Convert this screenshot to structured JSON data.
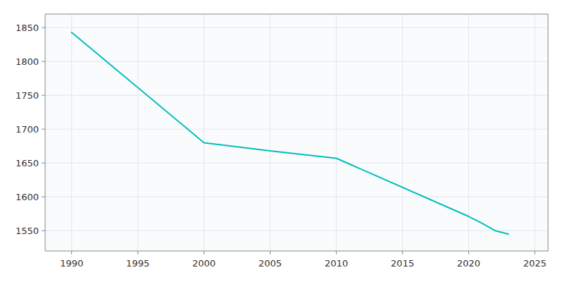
{
  "chart_data": {
    "type": "line",
    "x": [
      1990,
      2000,
      2005,
      2010,
      2020,
      2021,
      2022,
      2023
    ],
    "values": [
      1843,
      1680,
      1668,
      1657,
      1571,
      1561,
      1550,
      1545
    ],
    "color": "#00BFBF",
    "xlim": [
      1988,
      2026
    ],
    "ylim": [
      1520,
      1870
    ],
    "xticks": [
      1990,
      1995,
      2000,
      2005,
      2010,
      2015,
      2020,
      2025
    ],
    "yticks": [
      1550,
      1600,
      1650,
      1700,
      1750,
      1800,
      1850
    ],
    "grid": true
  }
}
